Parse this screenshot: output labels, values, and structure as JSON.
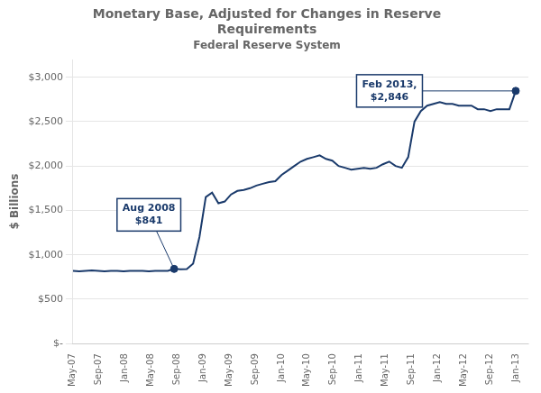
{
  "chart_data": {
    "type": "line",
    "title": "Monetary Base, Adjusted for Changes in Reserve\nRequirements",
    "subtitle": "Federal Reserve System",
    "ylabel": "$ Billions",
    "color": "#1a3a6b",
    "grid": "y",
    "x": [
      0,
      1,
      2,
      3,
      4,
      5,
      6,
      7,
      8,
      9,
      10,
      11,
      12,
      13,
      14,
      15,
      16,
      17,
      18,
      19,
      20,
      21,
      22,
      23,
      24,
      25,
      26,
      27,
      28,
      29,
      30,
      31,
      32,
      33,
      34,
      35,
      36,
      37,
      38,
      39,
      40,
      41,
      42,
      43,
      44,
      45,
      46,
      47,
      48,
      49,
      50,
      51,
      52,
      53,
      54,
      55,
      56,
      57,
      58,
      59,
      60,
      61,
      62,
      63,
      64,
      65,
      66,
      67,
      68,
      69,
      70
    ],
    "values": [
      820,
      815,
      820,
      825,
      820,
      815,
      820,
      820,
      815,
      820,
      820,
      820,
      815,
      820,
      820,
      820,
      841,
      838,
      840,
      900,
      1200,
      1650,
      1700,
      1580,
      1600,
      1680,
      1720,
      1730,
      1750,
      1780,
      1800,
      1820,
      1830,
      1900,
      1950,
      2000,
      2050,
      2080,
      2100,
      2120,
      2080,
      2060,
      2000,
      1980,
      1960,
      1970,
      1980,
      1970,
      1980,
      2020,
      2050,
      2000,
      1980,
      2100,
      2500,
      2620,
      2680,
      2700,
      2720,
      2700,
      2700,
      2680,
      2680,
      2680,
      2640,
      2640,
      2620,
      2640,
      2640,
      2640,
      2846
    ],
    "xlim": [
      0,
      72
    ],
    "xticks": [
      {
        "value": 0,
        "label": "May-07"
      },
      {
        "value": 4.117647058823529,
        "label": "Sep-07"
      },
      {
        "value": 8.235294117647058,
        "label": "Jan-08"
      },
      {
        "value": 12.352941176470589,
        "label": "May-08"
      },
      {
        "value": 16.47058823529412,
        "label": "Sep-08"
      },
      {
        "value": 20.58823529411765,
        "label": "Jan-09"
      },
      {
        "value": 24.705882352941178,
        "label": "May-09"
      },
      {
        "value": 28.823529411764707,
        "label": "Sep-09"
      },
      {
        "value": 32.94117647058823,
        "label": "Jan-10"
      },
      {
        "value": 37.05882352941177,
        "label": "May-10"
      },
      {
        "value": 41.17647058823529,
        "label": "Sep-10"
      },
      {
        "value": 45.294117647058826,
        "label": "Jan-11"
      },
      {
        "value": 49.411764705882355,
        "label": "May-11"
      },
      {
        "value": 53.529411764705884,
        "label": "Sep-11"
      },
      {
        "value": 57.64705882352941,
        "label": "Jan-12"
      },
      {
        "value": 61.76470588235294,
        "label": "May-12"
      },
      {
        "value": 65.88235294117646,
        "label": "Sep-12"
      },
      {
        "value": 70,
        "label": "Jan-13"
      }
    ],
    "ylim": [
      0,
      3200
    ],
    "yticks": [
      {
        "value": 0,
        "label": "$-"
      },
      {
        "value": 500,
        "label": "$500"
      },
      {
        "value": 1000,
        "label": "$1,000"
      },
      {
        "value": 1500,
        "label": "$1,500"
      },
      {
        "value": 2000,
        "label": "$2,000"
      },
      {
        "value": 2500,
        "label": "$2,500"
      },
      {
        "value": 3000,
        "label": "$3,000"
      }
    ],
    "annotations": [
      {
        "text": "Aug 2008\n$841",
        "x": 16,
        "y": 841
      },
      {
        "text": "Feb 2013,\n$2,846",
        "x": 70,
        "y": 2846
      }
    ]
  }
}
